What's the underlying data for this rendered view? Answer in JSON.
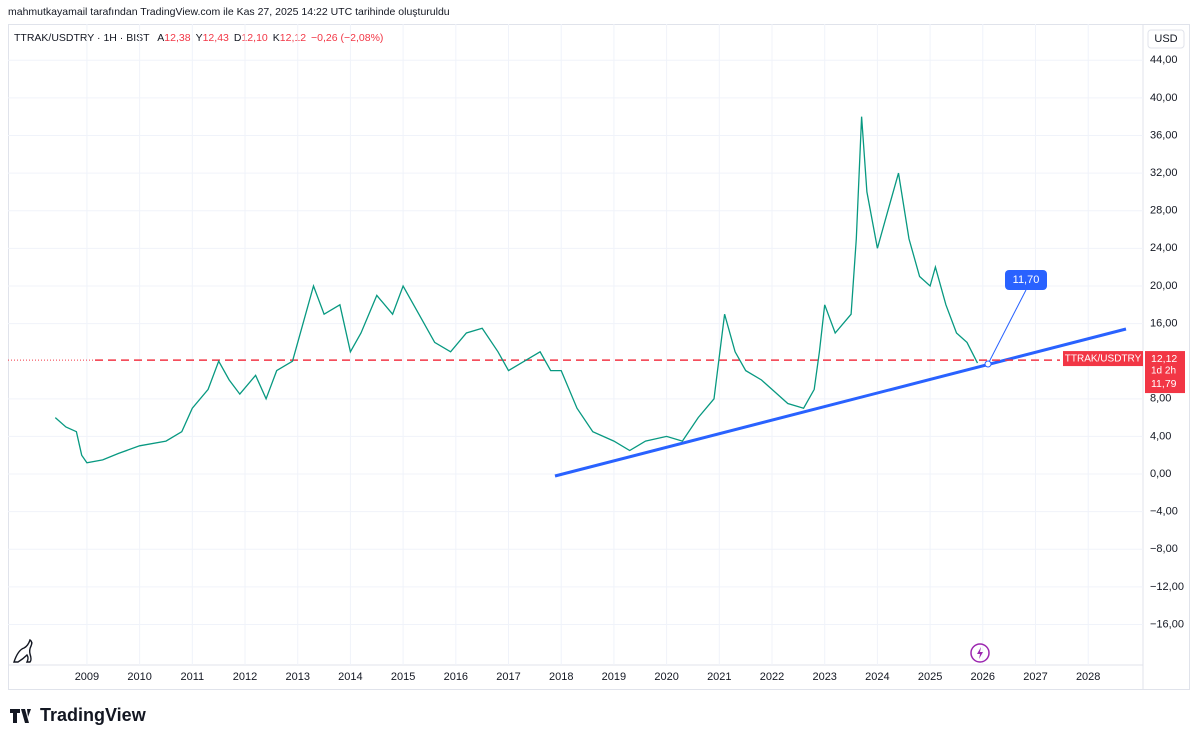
{
  "credit": "mahmutkayamail tarafından TradingView.com ile Kas 27, 2025 14:22 UTC tarihinde oluşturuldu",
  "brand": "TradingView",
  "chart_data": {
    "type": "line",
    "title": "TTRAK/USDTRY · 1H · BIST",
    "ohlc": [
      {
        "key": "A",
        "text": "12,38"
      },
      {
        "key": "Y",
        "text": "12,43"
      },
      {
        "key": "D",
        "text": "12,10"
      },
      {
        "key": "K",
        "text": "12,12"
      }
    ],
    "change": "−0,26 (−2,08%)",
    "currency": "USD",
    "symbol_label": "TTRAK/USDTRY",
    "last_price": {
      "value": 12.12,
      "label": "12,12"
    },
    "countdown": "1d 2h",
    "low_label": "11,79",
    "callout": "11,70",
    "color": "#089981",
    "x": [
      2008.4,
      2008.6,
      2008.8,
      2008.9,
      2009.0,
      2009.3,
      2009.6,
      2010.0,
      2010.5,
      2010.8,
      2011.0,
      2011.3,
      2011.5,
      2011.7,
      2011.9,
      2012.2,
      2012.4,
      2012.6,
      2012.9,
      2013.1,
      2013.3,
      2013.5,
      2013.8,
      2014.0,
      2014.2,
      2014.5,
      2014.8,
      2015.0,
      2015.3,
      2015.6,
      2015.9,
      2016.2,
      2016.5,
      2016.8,
      2017.0,
      2017.3,
      2017.6,
      2017.8,
      2018.0,
      2018.3,
      2018.6,
      2019.0,
      2019.3,
      2019.6,
      2020.0,
      2020.3,
      2020.6,
      2020.9,
      2021.1,
      2021.3,
      2021.5,
      2021.8,
      2022.0,
      2022.3,
      2022.6,
      2022.8,
      2022.9,
      2023.0,
      2023.2,
      2023.5,
      2023.6,
      2023.7,
      2023.8,
      2024.0,
      2024.2,
      2024.4,
      2024.6,
      2024.8,
      2025.0,
      2025.1,
      2025.3,
      2025.5,
      2025.7,
      2025.9
    ],
    "values": [
      6,
      5,
      4.5,
      2,
      1.2,
      1.5,
      2.2,
      3,
      3.5,
      4.5,
      7,
      9,
      12,
      10,
      8.5,
      10.5,
      8,
      11,
      12,
      16,
      20,
      17,
      18,
      13,
      15,
      19,
      17,
      20,
      17,
      14,
      13,
      15,
      15.5,
      13,
      11,
      12,
      13,
      11,
      11,
      7,
      4.5,
      3.5,
      2.5,
      3.5,
      4,
      3.5,
      6,
      8,
      17,
      13,
      11,
      10,
      9,
      7.5,
      7,
      9,
      13,
      18,
      15,
      17,
      25,
      38,
      30,
      24,
      28,
      32,
      25,
      21,
      20,
      22,
      18,
      15,
      14,
      11.8
    ],
    "xlim": [
      2007.54,
      2029.04
    ],
    "xticks": [
      2009,
      2010,
      2011,
      2012,
      2013,
      2014,
      2015,
      2016,
      2017,
      2018,
      2019,
      2020,
      2021,
      2022,
      2023,
      2024,
      2025,
      2026,
      2027,
      2028
    ],
    "ylim": [
      -22.96,
      45.3
    ],
    "yticks": [
      {
        "value": -16,
        "label": "−16,00"
      },
      {
        "value": -12,
        "label": "−12,00"
      },
      {
        "value": -8,
        "label": "−8,00"
      },
      {
        "value": -4,
        "label": "−4,00"
      },
      {
        "value": 0,
        "label": "0,00"
      },
      {
        "value": 4,
        "label": "4,00"
      },
      {
        "value": 8,
        "label": "8,00"
      },
      {
        "value": 16,
        "label": "16,00"
      },
      {
        "value": 20,
        "label": "20,00"
      },
      {
        "value": 24,
        "label": "24,00"
      },
      {
        "value": 28,
        "label": "28,00"
      },
      {
        "value": 32,
        "label": "32,00"
      },
      {
        "value": 36,
        "label": "36,00"
      },
      {
        "value": 40,
        "label": "40,00"
      },
      {
        "value": 44,
        "label": "44,00"
      }
    ],
    "grid": true
  }
}
